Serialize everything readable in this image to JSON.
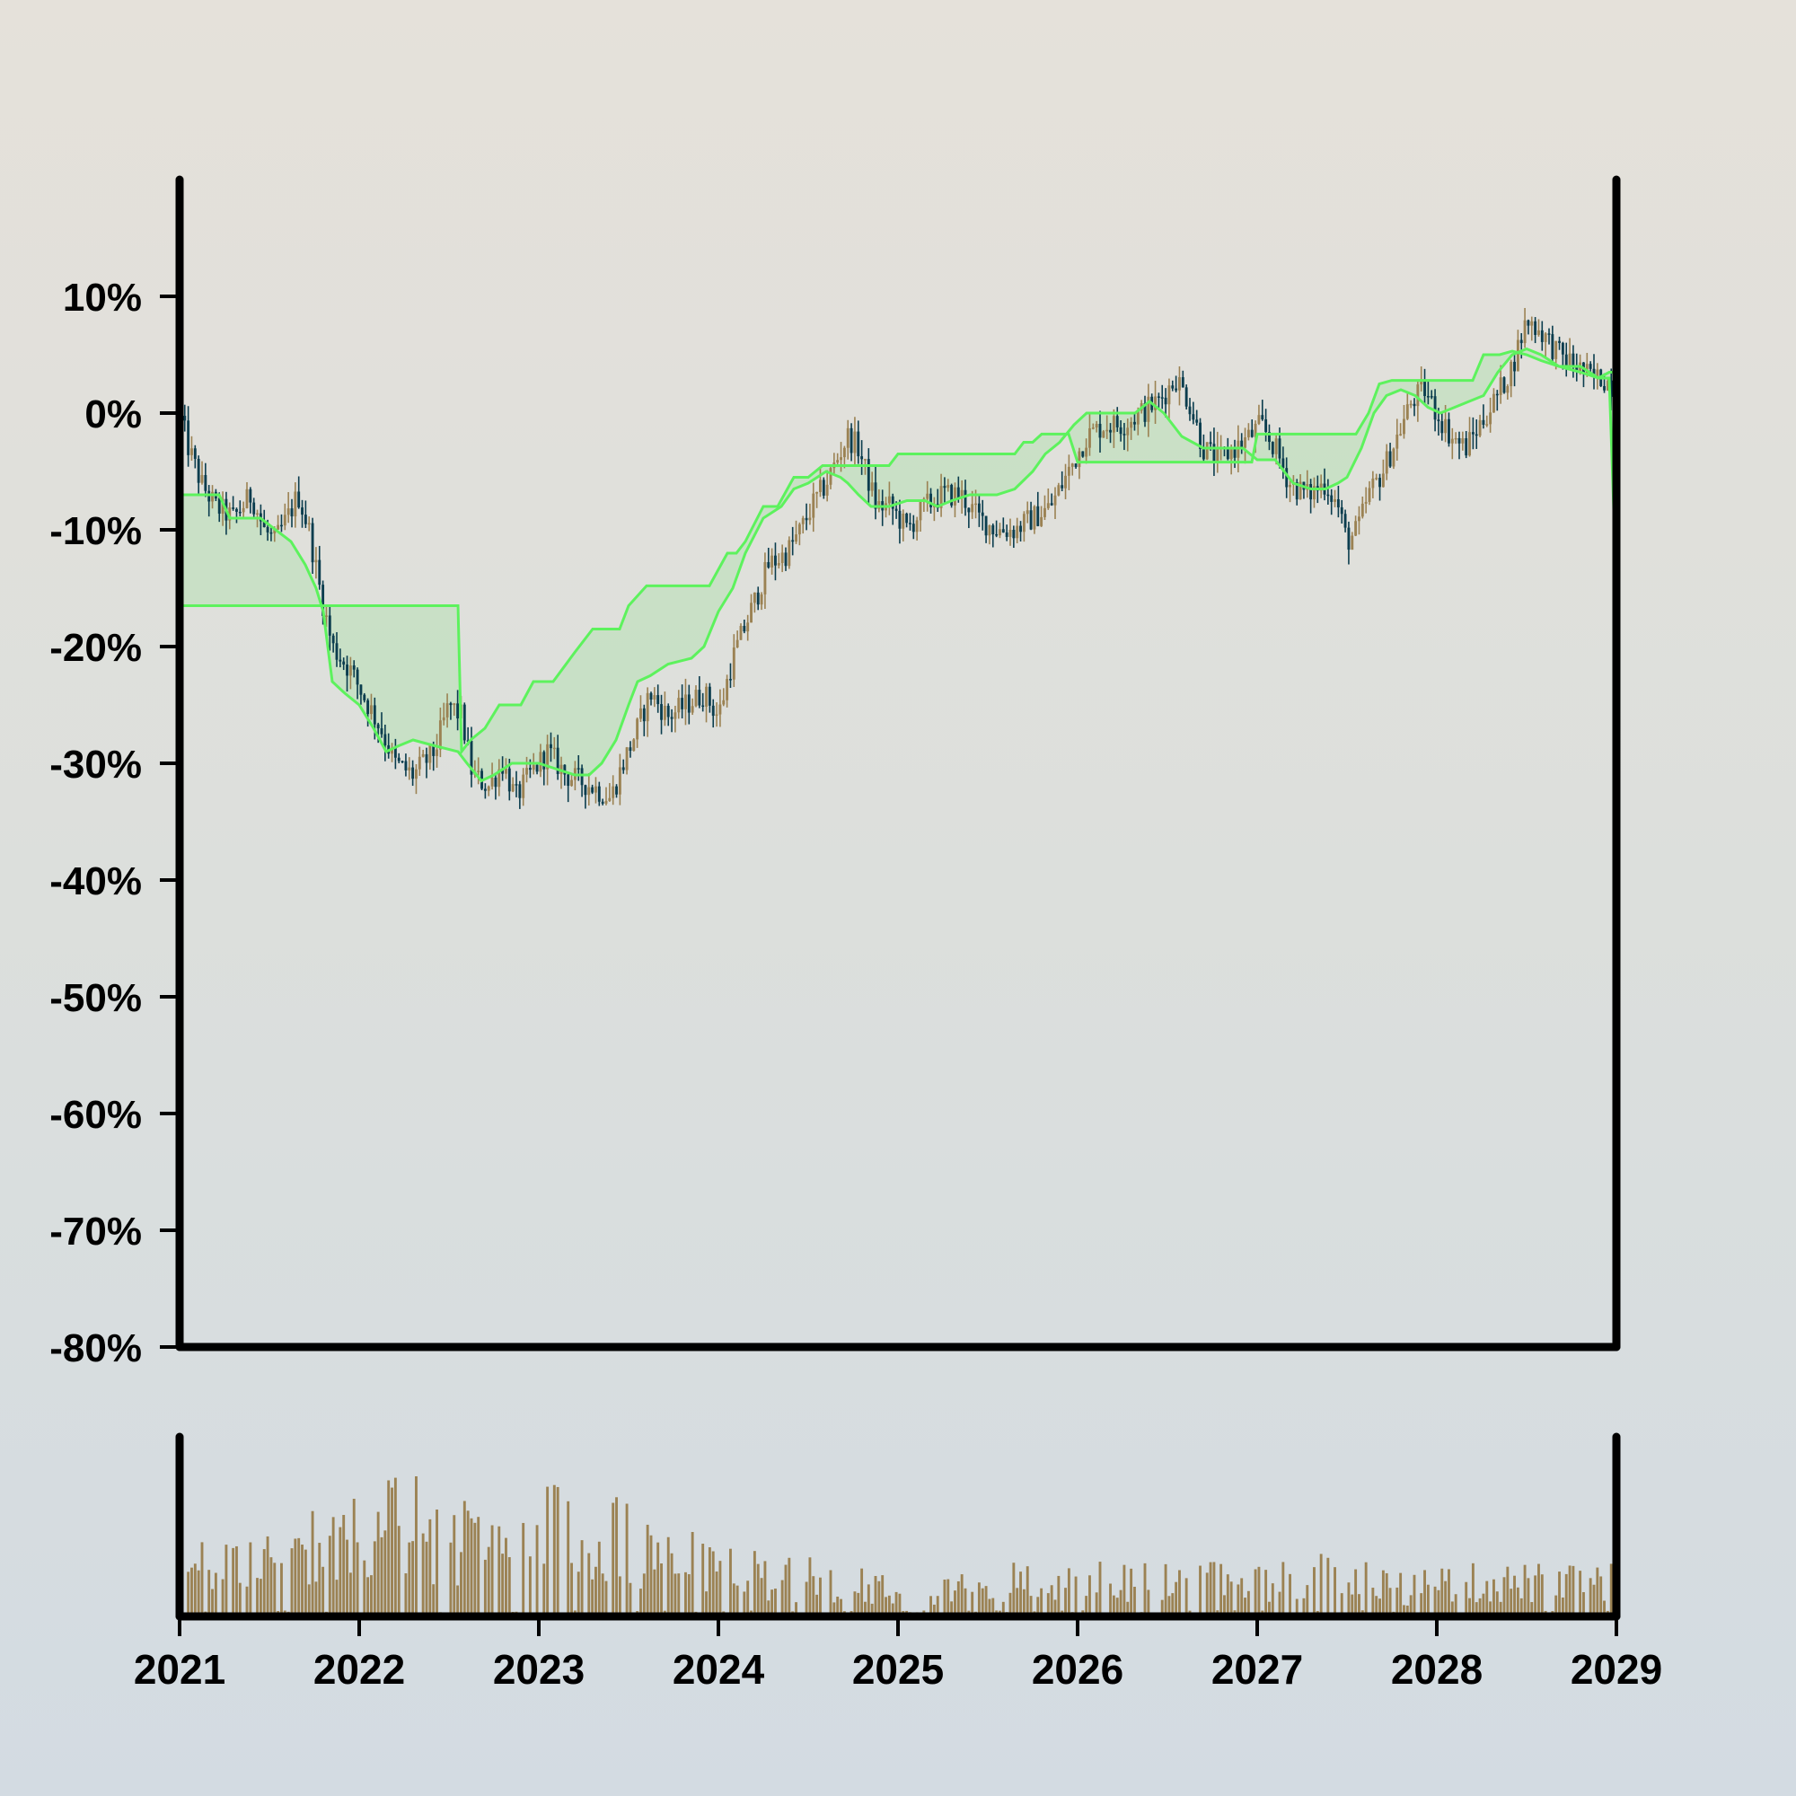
{
  "colors": {
    "up": "#9b8253",
    "down": "#0b3d4e",
    "band_line": "#5df25d",
    "band_fill": "#8fe28f",
    "volume": "#9b8253",
    "axis": "#000000"
  },
  "chart_data": [
    {
      "type": "candlestick",
      "title": "",
      "xlabel": "",
      "ylabel": "",
      "y_unit": "%",
      "ylim": [
        -80,
        20
      ],
      "yticks": [
        "10%",
        "0%",
        "-10%",
        "-20%",
        "-30%",
        "-40%",
        "-50%",
        "-60%",
        "-70%",
        "-80%"
      ],
      "ytick_values": [
        10,
        0,
        -10,
        -20,
        -30,
        -40,
        -50,
        -60,
        -70,
        -80
      ],
      "xlim": [
        2021,
        2029
      ],
      "xticks": [
        "2021",
        "2022",
        "2023",
        "2024",
        "2025",
        "2026",
        "2027",
        "2028",
        "2029"
      ],
      "grid": false,
      "close_path": [
        [
          2021.0,
          0
        ],
        [
          2021.05,
          -3
        ],
        [
          2021.12,
          -6
        ],
        [
          2021.2,
          -8
        ],
        [
          2021.3,
          -9
        ],
        [
          2021.4,
          -7
        ],
        [
          2021.47,
          -10
        ],
        [
          2021.53,
          -11
        ],
        [
          2021.6,
          -9
        ],
        [
          2021.66,
          -7
        ],
        [
          2021.72,
          -10
        ],
        [
          2021.78,
          -15
        ],
        [
          2021.85,
          -20
        ],
        [
          2021.95,
          -22
        ],
        [
          2022.05,
          -25
        ],
        [
          2022.12,
          -27
        ],
        [
          2022.2,
          -30
        ],
        [
          2022.3,
          -31
        ],
        [
          2022.42,
          -29
        ],
        [
          2022.5,
          -25
        ],
        [
          2022.57,
          -26
        ],
        [
          2022.63,
          -31
        ],
        [
          2022.72,
          -32
        ],
        [
          2022.8,
          -30
        ],
        [
          2022.87,
          -33
        ],
        [
          2022.95,
          -31
        ],
        [
          2023.05,
          -29
        ],
        [
          2023.15,
          -31
        ],
        [
          2023.3,
          -32
        ],
        [
          2023.4,
          -33
        ],
        [
          2023.47,
          -30
        ],
        [
          2023.55,
          -27
        ],
        [
          2023.62,
          -24
        ],
        [
          2023.72,
          -26
        ],
        [
          2023.82,
          -25
        ],
        [
          2023.92,
          -24
        ],
        [
          2024.0,
          -26
        ],
        [
          2024.08,
          -21
        ],
        [
          2024.18,
          -17
        ],
        [
          2024.28,
          -13
        ],
        [
          2024.38,
          -12
        ],
        [
          2024.46,
          -10
        ],
        [
          2024.52,
          -8
        ],
        [
          2024.6,
          -6
        ],
        [
          2024.66,
          -4
        ],
        [
          2024.72,
          -2
        ],
        [
          2024.78,
          -3
        ],
        [
          2024.88,
          -8
        ],
        [
          2024.96,
          -8
        ],
        [
          2025.05,
          -10
        ],
        [
          2025.15,
          -8
        ],
        [
          2025.25,
          -7
        ],
        [
          2025.35,
          -7
        ],
        [
          2025.45,
          -9
        ],
        [
          2025.55,
          -10
        ],
        [
          2025.65,
          -10
        ],
        [
          2025.75,
          -9
        ],
        [
          2025.85,
          -8
        ],
        [
          2025.95,
          -5
        ],
        [
          2026.05,
          -2
        ],
        [
          2026.15,
          -1
        ],
        [
          2026.25,
          -1
        ],
        [
          2026.35,
          0
        ],
        [
          2026.45,
          1
        ],
        [
          2026.55,
          3
        ],
        [
          2026.62,
          1
        ],
        [
          2026.7,
          -3
        ],
        [
          2026.78,
          -4
        ],
        [
          2026.88,
          -3
        ],
        [
          2026.96,
          -2
        ],
        [
          2027.02,
          -1
        ],
        [
          2027.1,
          -3
        ],
        [
          2027.18,
          -6
        ],
        [
          2027.28,
          -7
        ],
        [
          2027.38,
          -6
        ],
        [
          2027.45,
          -8
        ],
        [
          2027.5,
          -11
        ],
        [
          2027.56,
          -10
        ],
        [
          2027.62,
          -7
        ],
        [
          2027.7,
          -5
        ],
        [
          2027.78,
          -2
        ],
        [
          2027.86,
          1
        ],
        [
          2027.93,
          2
        ],
        [
          2028.0,
          0
        ],
        [
          2028.08,
          -2
        ],
        [
          2028.16,
          -3
        ],
        [
          2028.24,
          -1
        ],
        [
          2028.32,
          1
        ],
        [
          2028.42,
          4
        ],
        [
          2028.5,
          8
        ],
        [
          2028.58,
          7
        ],
        [
          2028.68,
          5
        ],
        [
          2028.78,
          4
        ],
        [
          2028.86,
          3
        ],
        [
          2028.93,
          3
        ],
        [
          2029.0,
          2
        ]
      ],
      "upper_band": [
        [
          2021.0,
          -7
        ],
        [
          2021.22,
          -7
        ],
        [
          2021.28,
          -9
        ],
        [
          2021.45,
          -9
        ],
        [
          2021.62,
          -11
        ],
        [
          2021.7,
          -13
        ],
        [
          2021.76,
          -15
        ],
        [
          2021.8,
          -17
        ],
        [
          2021.85,
          -23
        ],
        [
          2021.92,
          -24
        ],
        [
          2022.0,
          -25
        ],
        [
          2022.08,
          -27
        ],
        [
          2022.15,
          -29
        ],
        [
          2022.22,
          -28.5
        ],
        [
          2022.3,
          -28
        ],
        [
          2022.42,
          -28.5
        ],
        [
          2022.55,
          -29
        ],
        [
          2022.6,
          -30
        ],
        [
          2022.68,
          -31.5
        ],
        [
          2022.75,
          -31
        ],
        [
          2022.85,
          -30
        ],
        [
          2023.0,
          -30
        ],
        [
          2023.1,
          -30.5
        ],
        [
          2023.2,
          -31
        ],
        [
          2023.28,
          -31
        ],
        [
          2023.35,
          -30
        ],
        [
          2023.43,
          -28
        ],
        [
          2023.5,
          -25
        ],
        [
          2023.55,
          -23
        ],
        [
          2023.62,
          -22.5
        ],
        [
          2023.72,
          -21.5
        ],
        [
          2023.85,
          -21
        ],
        [
          2023.92,
          -20
        ],
        [
          2024.0,
          -17
        ],
        [
          2024.08,
          -15
        ],
        [
          2024.15,
          -12
        ],
        [
          2024.25,
          -9
        ],
        [
          2024.35,
          -8
        ],
        [
          2024.42,
          -6.5
        ],
        [
          2024.5,
          -6
        ],
        [
          2024.6,
          -5
        ],
        [
          2024.68,
          -5.5
        ],
        [
          2024.72,
          -6
        ],
        [
          2024.78,
          -7
        ],
        [
          2024.85,
          -8
        ],
        [
          2024.95,
          -8
        ],
        [
          2025.05,
          -7.5
        ],
        [
          2025.15,
          -7.5
        ],
        [
          2025.22,
          -8
        ],
        [
          2025.3,
          -7.5
        ],
        [
          2025.4,
          -7
        ],
        [
          2025.55,
          -7
        ],
        [
          2025.65,
          -6.5
        ],
        [
          2025.75,
          -5
        ],
        [
          2025.82,
          -3.5
        ],
        [
          2025.9,
          -2.5
        ],
        [
          2025.98,
          -1
        ],
        [
          2026.05,
          0
        ],
        [
          2026.2,
          0
        ],
        [
          2026.32,
          0
        ],
        [
          2026.4,
          1
        ],
        [
          2026.48,
          0
        ],
        [
          2026.58,
          -2
        ],
        [
          2026.7,
          -3
        ],
        [
          2026.82,
          -3
        ],
        [
          2026.92,
          -3
        ],
        [
          2027.0,
          -4
        ],
        [
          2027.1,
          -4
        ],
        [
          2027.2,
          -6
        ],
        [
          2027.3,
          -6.5
        ],
        [
          2027.38,
          -6.5
        ],
        [
          2027.45,
          -6
        ],
        [
          2027.5,
          -5.5
        ],
        [
          2027.58,
          -3
        ],
        [
          2027.65,
          0
        ],
        [
          2027.72,
          1.5
        ],
        [
          2027.8,
          2
        ],
        [
          2027.88,
          1.5
        ],
        [
          2027.95,
          0.5
        ],
        [
          2028.02,
          0
        ],
        [
          2028.1,
          0.5
        ],
        [
          2028.18,
          1
        ],
        [
          2028.26,
          1.5
        ],
        [
          2028.34,
          3.5
        ],
        [
          2028.42,
          5
        ],
        [
          2028.5,
          5.5
        ],
        [
          2028.58,
          5
        ],
        [
          2028.68,
          4
        ],
        [
          2028.8,
          3.5
        ],
        [
          2028.9,
          3
        ],
        [
          2028.96,
          3
        ],
        [
          2029.0,
          -15
        ]
      ],
      "lower_band": [
        [
          2021.0,
          -16.5
        ],
        [
          2022.55,
          -16.5
        ],
        [
          2022.57,
          -29
        ],
        [
          2022.62,
          -28
        ],
        [
          2022.7,
          -27
        ],
        [
          2022.78,
          -25
        ],
        [
          2022.9,
          -25
        ],
        [
          2022.97,
          -23
        ],
        [
          2023.08,
          -23
        ],
        [
          2023.2,
          -20.5
        ],
        [
          2023.3,
          -18.5
        ],
        [
          2023.45,
          -18.5
        ],
        [
          2023.5,
          -16.5
        ],
        [
          2023.6,
          -14.8
        ],
        [
          2023.95,
          -14.8
        ],
        [
          2024.05,
          -12
        ],
        [
          2024.1,
          -12
        ],
        [
          2024.15,
          -11
        ],
        [
          2024.25,
          -8
        ],
        [
          2024.33,
          -8
        ],
        [
          2024.42,
          -5.5
        ],
        [
          2024.5,
          -5.5
        ],
        [
          2024.58,
          -4.5
        ],
        [
          2024.68,
          -4.5
        ],
        [
          2024.75,
          -4.5
        ],
        [
          2024.95,
          -4.5
        ],
        [
          2025.0,
          -3.5
        ],
        [
          2025.65,
          -3.5
        ],
        [
          2025.7,
          -2.5
        ],
        [
          2025.75,
          -2.5
        ],
        [
          2025.8,
          -1.8
        ],
        [
          2025.95,
          -1.8
        ],
        [
          2026.0,
          -4.2
        ],
        [
          2026.85,
          -4.2
        ],
        [
          2026.9,
          -4.2
        ],
        [
          2026.97,
          -4.2
        ],
        [
          2027.0,
          -1.8
        ],
        [
          2027.1,
          -1.8
        ],
        [
          2027.5,
          -1.8
        ],
        [
          2027.55,
          -1.8
        ],
        [
          2027.62,
          0
        ],
        [
          2027.68,
          2.5
        ],
        [
          2027.75,
          2.8
        ],
        [
          2028.15,
          2.8
        ],
        [
          2028.2,
          2.8
        ],
        [
          2028.26,
          5
        ],
        [
          2028.35,
          5
        ],
        [
          2028.42,
          5.3
        ],
        [
          2028.5,
          5
        ],
        [
          2028.58,
          4.5
        ],
        [
          2028.68,
          4
        ],
        [
          2028.8,
          4
        ],
        [
          2028.9,
          3
        ],
        [
          2028.96,
          3.5
        ],
        [
          2029.0,
          3.5
        ]
      ]
    },
    {
      "type": "bar",
      "title": "",
      "xlabel": "",
      "ylabel": "",
      "xlim": [
        2021,
        2029
      ],
      "xticks": [
        "2021",
        "2022",
        "2023",
        "2024",
        "2025",
        "2026",
        "2027",
        "2028",
        "2029"
      ],
      "ylim": [
        0,
        1.1
      ],
      "volume_profile": [
        [
          2021.0,
          0.38
        ],
        [
          2021.4,
          0.52
        ],
        [
          2021.8,
          0.72
        ],
        [
          2022.2,
          0.85
        ],
        [
          2022.5,
          0.7
        ],
        [
          2022.8,
          0.55
        ],
        [
          2023.1,
          0.82
        ],
        [
          2023.4,
          0.68
        ],
        [
          2023.7,
          0.55
        ],
        [
          2024.0,
          0.4
        ],
        [
          2024.4,
          0.35
        ],
        [
          2024.8,
          0.3
        ],
        [
          2025.1,
          0.28
        ],
        [
          2025.5,
          0.3
        ],
        [
          2025.9,
          0.32
        ],
        [
          2026.3,
          0.3
        ],
        [
          2026.7,
          0.32
        ],
        [
          2027.1,
          0.33
        ],
        [
          2027.5,
          0.38
        ],
        [
          2027.8,
          0.25
        ],
        [
          2028.1,
          0.3
        ],
        [
          2028.5,
          0.3
        ],
        [
          2029.0,
          0.3
        ]
      ]
    }
  ]
}
